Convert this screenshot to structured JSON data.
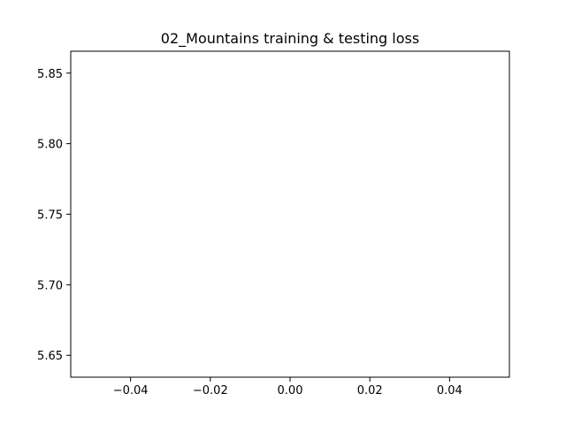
{
  "chart_data": {
    "type": "line",
    "title": "02_Mountains training & testing loss",
    "xlabel": "",
    "ylabel": "",
    "xlim": [
      -0.055,
      0.055
    ],
    "ylim": [
      5.6345,
      5.8655
    ],
    "x_ticks": [
      -0.04,
      -0.02,
      0.0,
      0.02,
      0.04
    ],
    "x_tick_labels": [
      "−0.04",
      "−0.02",
      "0.00",
      "0.02",
      "0.04"
    ],
    "y_ticks": [
      5.65,
      5.7,
      5.75,
      5.8,
      5.85
    ],
    "y_tick_labels": [
      "5.65",
      "5.70",
      "5.75",
      "5.80",
      "5.85"
    ],
    "grid": false,
    "series": [],
    "colors": {
      "axis": "#000000",
      "background": "#ffffff"
    }
  }
}
